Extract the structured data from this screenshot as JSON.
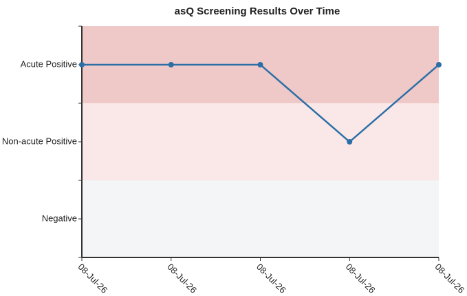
{
  "chart_data": {
    "type": "line",
    "title": "asQ Screening Results Over Time",
    "categories": [
      "08-Jul-26",
      "08-Jul-26",
      "08-Jul-26",
      "08-Jul-26",
      "08-Jul-26"
    ],
    "series": [
      {
        "color": "#2c6ea6",
        "values": [
          2,
          2,
          2,
          1,
          2
        ]
      }
    ],
    "ylim": [
      -0.5,
      2.5
    ],
    "yticks": [
      {
        "value": 0,
        "label": "Negative"
      },
      {
        "value": 1,
        "label": "Non-acute Positive"
      },
      {
        "value": 2,
        "label": "Acute Positive"
      }
    ],
    "bands": [
      {
        "from": -0.5,
        "to": 0.5,
        "color": "#f4f5f7"
      },
      {
        "from": 0.5,
        "to": 1.5,
        "color": "#f9e8e7"
      },
      {
        "from": 1.5,
        "to": 2.5,
        "color": "#efc9c8"
      }
    ]
  }
}
